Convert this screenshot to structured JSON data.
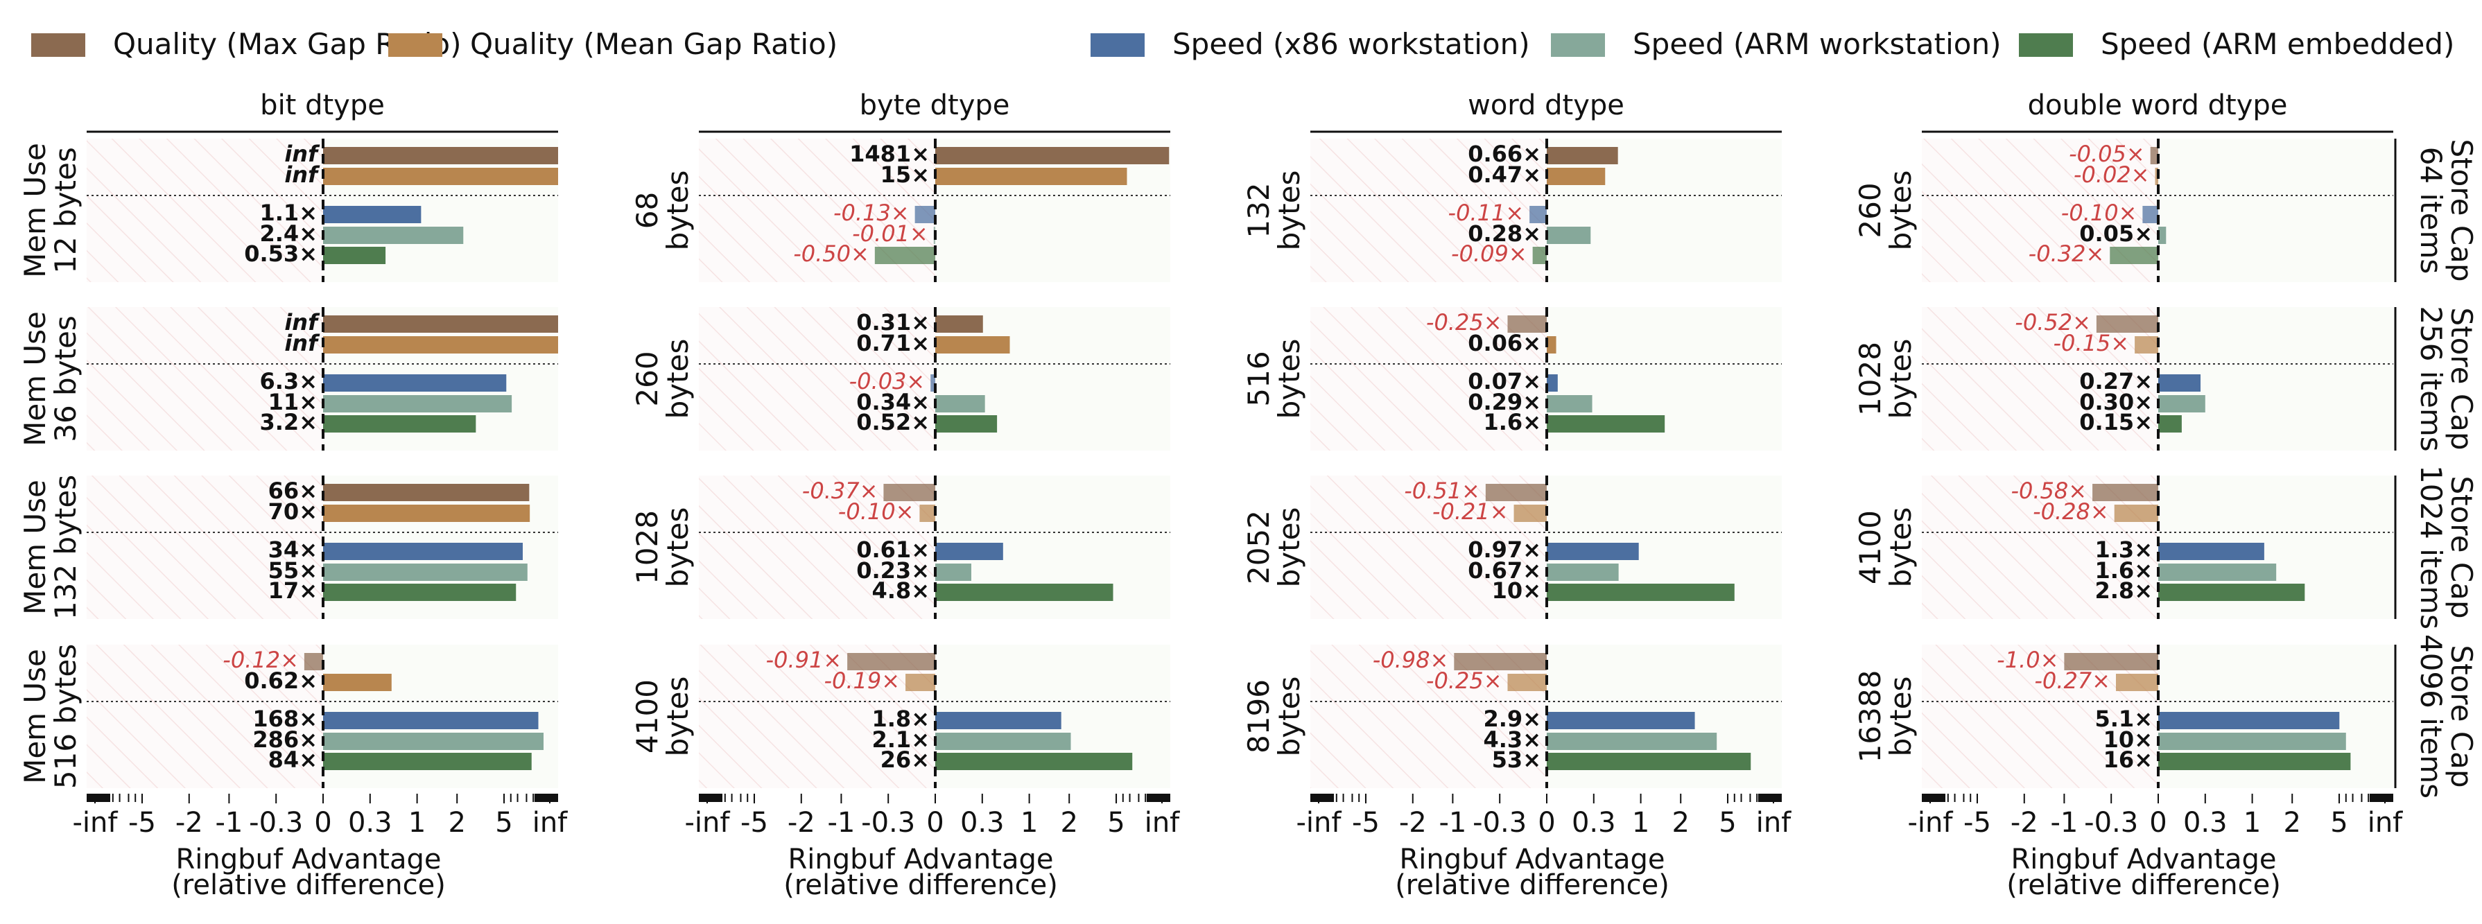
{
  "chart_data": {
    "type": "bar",
    "orientation": "horizontal",
    "legend": {
      "placement": "top",
      "entries": [
        {
          "key": "qmax",
          "label": "Quality (Max Gap Ratio)",
          "color": "#8b6a50"
        },
        {
          "key": "qmean",
          "label": "Quality (Mean Gap Ratio)",
          "color": "#b8864f"
        },
        {
          "key": "sx86",
          "label": "Speed (x86 workstation)",
          "color": "#4c6fa0"
        },
        {
          "key": "sarmw",
          "label": "Speed (ARM workstation)",
          "color": "#86a89a"
        },
        {
          "key": "sarme",
          "label": "Speed (ARM embedded)",
          "color": "#4f7d4f"
        }
      ]
    },
    "colors": {
      "negative_label": "#cc4444",
      "positive_label": "#111111"
    },
    "xlabel": "Ringbuf Advantage",
    "xlabel2": "(relative difference)",
    "xticks": [
      "-inf",
      "-5",
      "-2",
      "-1",
      "-0.3",
      "0",
      "0.3",
      "1",
      "2",
      "5",
      "inf"
    ],
    "columns": [
      "bit dtype",
      "byte dtype",
      "word dtype",
      "double word dtype"
    ],
    "row_labels_right": [
      [
        "Store Cap",
        "64 items"
      ],
      [
        "Store Cap",
        "256 items"
      ],
      [
        "Store Cap",
        "1024 items"
      ],
      [
        "Store Cap",
        "4096 items"
      ]
    ],
    "mem_use_labels": [
      [
        [
          "Mem Use",
          "12 bytes"
        ],
        [
          "68",
          "bytes"
        ],
        [
          "132",
          "bytes"
        ],
        [
          "260",
          "bytes"
        ]
      ],
      [
        [
          "Mem Use",
          "36 bytes"
        ],
        [
          "260",
          "bytes"
        ],
        [
          "516",
          "bytes"
        ],
        [
          "1028",
          "bytes"
        ]
      ],
      [
        [
          "Mem Use",
          "132 bytes"
        ],
        [
          "1028",
          "bytes"
        ],
        [
          "2052",
          "bytes"
        ],
        [
          "4100",
          "bytes"
        ]
      ],
      [
        [
          "Mem Use",
          "516 bytes"
        ],
        [
          "4100",
          "bytes"
        ],
        [
          "8196",
          "bytes"
        ],
        [
          "16388",
          "bytes"
        ]
      ]
    ],
    "panels": [
      [
        {
          "bars": [
            {
              "s": "qmax",
              "value": "inf",
              "label": "inf"
            },
            {
              "s": "qmean",
              "value": "inf",
              "label": "inf"
            },
            {
              "s": "sx86",
              "value": 1.1,
              "label": "1.1×"
            },
            {
              "s": "sarmw",
              "value": 2.4,
              "label": "2.4×"
            },
            {
              "s": "sarme",
              "value": 0.53,
              "label": "0.53×"
            }
          ]
        },
        {
          "bars": [
            {
              "s": "qmax",
              "value": 1481,
              "label": "1481×"
            },
            {
              "s": "qmean",
              "value": 15,
              "label": "15×"
            },
            {
              "s": "sx86",
              "value": -0.13,
              "label": "-0.13×"
            },
            {
              "s": "sarmw",
              "value": -0.01,
              "label": "-0.01×"
            },
            {
              "s": "sarme",
              "value": -0.5,
              "label": "-0.50×"
            }
          ]
        },
        {
          "bars": [
            {
              "s": "qmax",
              "value": 0.66,
              "label": "0.66×"
            },
            {
              "s": "qmean",
              "value": 0.47,
              "label": "0.47×"
            },
            {
              "s": "sx86",
              "value": -0.11,
              "label": "-0.11×"
            },
            {
              "s": "sarmw",
              "value": 0.28,
              "label": "0.28×"
            },
            {
              "s": "sarme",
              "value": -0.09,
              "label": "-0.09×"
            }
          ]
        },
        {
          "bars": [
            {
              "s": "qmax",
              "value": -0.05,
              "label": "-0.05×"
            },
            {
              "s": "qmean",
              "value": -0.02,
              "label": "-0.02×"
            },
            {
              "s": "sx86",
              "value": -0.1,
              "label": "-0.10×"
            },
            {
              "s": "sarmw",
              "value": 0.05,
              "label": "0.05×"
            },
            {
              "s": "sarme",
              "value": -0.32,
              "label": "-0.32×"
            }
          ]
        }
      ],
      [
        {
          "bars": [
            {
              "s": "qmax",
              "value": "inf",
              "label": "inf"
            },
            {
              "s": "qmean",
              "value": "inf",
              "label": "inf"
            },
            {
              "s": "sx86",
              "value": 6.3,
              "label": "6.3×"
            },
            {
              "s": "sarmw",
              "value": 11,
              "label": "11×"
            },
            {
              "s": "sarme",
              "value": 3.2,
              "label": "3.2×"
            }
          ]
        },
        {
          "bars": [
            {
              "s": "qmax",
              "value": 0.31,
              "label": "0.31×"
            },
            {
              "s": "qmean",
              "value": 0.71,
              "label": "0.71×"
            },
            {
              "s": "sx86",
              "value": -0.03,
              "label": "-0.03×"
            },
            {
              "s": "sarmw",
              "value": 0.34,
              "label": "0.34×"
            },
            {
              "s": "sarme",
              "value": 0.52,
              "label": "0.52×"
            }
          ]
        },
        {
          "bars": [
            {
              "s": "qmax",
              "value": -0.25,
              "label": "-0.25×"
            },
            {
              "s": "qmean",
              "value": 0.06,
              "label": "0.06×"
            },
            {
              "s": "sx86",
              "value": 0.07,
              "label": "0.07×"
            },
            {
              "s": "sarmw",
              "value": 0.29,
              "label": "0.29×"
            },
            {
              "s": "sarme",
              "value": 1.6,
              "label": "1.6×"
            }
          ]
        },
        {
          "bars": [
            {
              "s": "qmax",
              "value": -0.52,
              "label": "-0.52×"
            },
            {
              "s": "qmean",
              "value": -0.15,
              "label": "-0.15×"
            },
            {
              "s": "sx86",
              "value": 0.27,
              "label": "0.27×"
            },
            {
              "s": "sarmw",
              "value": 0.3,
              "label": "0.30×"
            },
            {
              "s": "sarme",
              "value": 0.15,
              "label": "0.15×"
            }
          ]
        }
      ],
      [
        {
          "bars": [
            {
              "s": "qmax",
              "value": 66,
              "label": "66×"
            },
            {
              "s": "qmean",
              "value": 70,
              "label": "70×"
            },
            {
              "s": "sx86",
              "value": 34,
              "label": "34×"
            },
            {
              "s": "sarmw",
              "value": 55,
              "label": "55×"
            },
            {
              "s": "sarme",
              "value": 17,
              "label": "17×"
            }
          ]
        },
        {
          "bars": [
            {
              "s": "qmax",
              "value": -0.37,
              "label": "-0.37×"
            },
            {
              "s": "qmean",
              "value": -0.1,
              "label": "-0.10×"
            },
            {
              "s": "sx86",
              "value": 0.61,
              "label": "0.61×"
            },
            {
              "s": "sarmw",
              "value": 0.23,
              "label": "0.23×"
            },
            {
              "s": "sarme",
              "value": 4.8,
              "label": "4.8×"
            }
          ]
        },
        {
          "bars": [
            {
              "s": "qmax",
              "value": -0.51,
              "label": "-0.51×"
            },
            {
              "s": "qmean",
              "value": -0.21,
              "label": "-0.21×"
            },
            {
              "s": "sx86",
              "value": 0.97,
              "label": "0.97×"
            },
            {
              "s": "sarmw",
              "value": 0.67,
              "label": "0.67×"
            },
            {
              "s": "sarme",
              "value": 10,
              "label": "10×"
            }
          ]
        },
        {
          "bars": [
            {
              "s": "qmax",
              "value": -0.58,
              "label": "-0.58×"
            },
            {
              "s": "qmean",
              "value": -0.28,
              "label": "-0.28×"
            },
            {
              "s": "sx86",
              "value": 1.3,
              "label": "1.3×"
            },
            {
              "s": "sarmw",
              "value": 1.6,
              "label": "1.6×"
            },
            {
              "s": "sarme",
              "value": 2.8,
              "label": "2.8×"
            }
          ]
        }
      ],
      [
        {
          "bars": [
            {
              "s": "qmax",
              "value": -0.12,
              "label": "-0.12×"
            },
            {
              "s": "qmean",
              "value": 0.62,
              "label": "0.62×"
            },
            {
              "s": "sx86",
              "value": 168,
              "label": "168×"
            },
            {
              "s": "sarmw",
              "value": 286,
              "label": "286×"
            },
            {
              "s": "sarme",
              "value": 84,
              "label": "84×"
            }
          ]
        },
        {
          "bars": [
            {
              "s": "qmax",
              "value": -0.91,
              "label": "-0.91×"
            },
            {
              "s": "qmean",
              "value": -0.19,
              "label": "-0.19×"
            },
            {
              "s": "sx86",
              "value": 1.8,
              "label": "1.8×"
            },
            {
              "s": "sarmw",
              "value": 2.1,
              "label": "2.1×"
            },
            {
              "s": "sarme",
              "value": 26,
              "label": "26×"
            }
          ]
        },
        {
          "bars": [
            {
              "s": "qmax",
              "value": -0.98,
              "label": "-0.98×"
            },
            {
              "s": "qmean",
              "value": -0.25,
              "label": "-0.25×"
            },
            {
              "s": "sx86",
              "value": 2.9,
              "label": "2.9×"
            },
            {
              "s": "sarmw",
              "value": 4.3,
              "label": "4.3×"
            },
            {
              "s": "sarme",
              "value": 53,
              "label": "53×"
            }
          ]
        },
        {
          "bars": [
            {
              "s": "qmax",
              "value": -1.0,
              "label": "-1.0×"
            },
            {
              "s": "qmean",
              "value": -0.27,
              "label": "-0.27×"
            },
            {
              "s": "sx86",
              "value": 5.1,
              "label": "5.1×"
            },
            {
              "s": "sarmw",
              "value": 10,
              "label": "10×"
            },
            {
              "s": "sarme",
              "value": 16,
              "label": "16×"
            }
          ]
        }
      ]
    ]
  }
}
